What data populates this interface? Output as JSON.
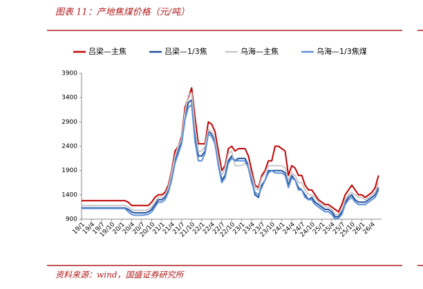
{
  "chart_data": {
    "type": "line",
    "title": "图表 11：产地焦煤价格（元/吨）",
    "source": "资料来源：wind，国盛证券研究所",
    "categories": [
      "19/1",
      null,
      null,
      "19/4",
      null,
      null,
      "19/7",
      null,
      null,
      "19/10",
      null,
      null,
      "20/1",
      null,
      null,
      "20/4",
      null,
      null,
      "20/7",
      null,
      null,
      "20/10",
      null,
      null,
      "21/1",
      null,
      null,
      "21/4",
      null,
      null,
      "21/7",
      null,
      null,
      "21/10",
      null,
      null,
      "22/1",
      null,
      null,
      "22/4",
      null,
      null,
      "22/7",
      null,
      null,
      "22/10",
      null,
      null,
      "23/1",
      null,
      null,
      "23/4",
      null,
      null,
      "23/7",
      null,
      null,
      "23/10",
      null,
      null,
      "24/1",
      null,
      null,
      "24/4",
      null,
      null,
      "24/7",
      null,
      null,
      "24/10",
      null,
      null,
      "25/1",
      null,
      null,
      "25/4",
      null,
      null,
      "25/7",
      null,
      null,
      "25/10",
      null,
      null,
      "26/1",
      null,
      null,
      "26/4",
      null,
      null
    ],
    "series": [
      {
        "name": "吕梁—主焦",
        "color": "#c00000",
        "values": [
          1280,
          1280,
          1280,
          1280,
          1280,
          1280,
          1280,
          1280,
          1280,
          1280,
          1280,
          1280,
          1280,
          1280,
          1250,
          1180,
          1180,
          1180,
          1180,
          1180,
          1180,
          1250,
          1350,
          1400,
          1400,
          1450,
          1600,
          1900,
          2300,
          2400,
          2600,
          3200,
          3400,
          3600,
          3000,
          2450,
          2450,
          2450,
          2900,
          2850,
          2700,
          2300,
          1900,
          2000,
          2350,
          2400,
          2300,
          2350,
          2350,
          2350,
          2200,
          1900,
          1600,
          1550,
          1800,
          1900,
          2100,
          2100,
          2400,
          2400,
          2350,
          2300,
          1800,
          2000,
          1950,
          1800,
          1800,
          1600,
          1500,
          1500,
          1400,
          1300,
          1250,
          1200,
          1200,
          1150,
          1100,
          1050,
          1200,
          1400,
          1500,
          1600,
          1500,
          1400,
          1400,
          1350,
          1400,
          1450,
          1550,
          1800
        ]
      },
      {
        "name": "吕梁—1/3焦",
        "color": "#1f4e9a",
        "values": [
          1130,
          1130,
          1130,
          1130,
          1130,
          1130,
          1130,
          1130,
          1130,
          1130,
          1130,
          1130,
          1130,
          1130,
          1100,
          1050,
          1030,
          1030,
          1030,
          1030,
          1050,
          1100,
          1200,
          1300,
          1300,
          1350,
          1500,
          1750,
          2100,
          2300,
          2500,
          3000,
          3300,
          3350,
          2700,
          2200,
          2200,
          2300,
          2700,
          2650,
          2500,
          2100,
          1700,
          1800,
          2100,
          2200,
          2100,
          2150,
          2150,
          2150,
          2000,
          1700,
          1400,
          1350,
          1600,
          1700,
          1900,
          1900,
          1900,
          1900,
          1900,
          1850,
          1600,
          1800,
          1700,
          1550,
          1500,
          1400,
          1300,
          1350,
          1250,
          1200,
          1150,
          1100,
          1100,
          1050,
          950,
          950,
          1050,
          1250,
          1350,
          1400,
          1300,
          1250,
          1250,
          1250,
          1300,
          1350,
          1400,
          1550
        ]
      },
      {
        "name": "乌海—主焦",
        "color": "#c8c8c8",
        "values": [
          1180,
          1180,
          1180,
          1180,
          1180,
          1180,
          1180,
          1180,
          1180,
          1180,
          1180,
          1180,
          1180,
          1180,
          1150,
          1100,
          1080,
          1080,
          1080,
          1080,
          1100,
          1150,
          1250,
          1350,
          1350,
          1400,
          1550,
          1850,
          2200,
          2400,
          2550,
          3100,
          3450,
          3500,
          2800,
          2300,
          2300,
          2400,
          2750,
          2700,
          2550,
          2150,
          1800,
          1950,
          2250,
          2300,
          2000,
          2000,
          2000,
          2050,
          2000,
          1800,
          1550,
          1500,
          1750,
          1850,
          2000,
          2000,
          2000,
          2000,
          2000,
          1950,
          1700,
          1850,
          1800,
          1650,
          1650,
          1500,
          1400,
          1400,
          1350,
          1250,
          1200,
          1150,
          1150,
          1100,
          1000,
          1000,
          1100,
          1300,
          1400,
          1450,
          1400,
          1350,
          1350,
          1300,
          1350,
          1400,
          1450,
          1650
        ]
      },
      {
        "name": "乌海—1/3焦煤",
        "color": "#5b8fd6",
        "values": [
          1120,
          1120,
          1120,
          1120,
          1120,
          1120,
          1120,
          1120,
          1120,
          1120,
          1120,
          1120,
          1120,
          1120,
          1050,
          1000,
          980,
          980,
          980,
          990,
          1000,
          1050,
          1150,
          1250,
          1250,
          1300,
          1450,
          1700,
          2050,
          2250,
          2450,
          2950,
          3200,
          3250,
          2500,
          2100,
          2100,
          2250,
          2650,
          2600,
          2450,
          2000,
          1650,
          1750,
          2050,
          2150,
          2100,
          2100,
          2100,
          2100,
          1950,
          1650,
          1450,
          1400,
          1550,
          1700,
          1850,
          1900,
          1850,
          1850,
          1850,
          1800,
          1550,
          1750,
          1700,
          1500,
          1500,
          1350,
          1300,
          1300,
          1200,
          1150,
          1100,
          1050,
          1050,
          1000,
          900,
          920,
          1000,
          1200,
          1300,
          1350,
          1250,
          1200,
          1200,
          1200,
          1250,
          1300,
          1350,
          1500
        ]
      }
    ],
    "ylim": [
      900,
      3900
    ],
    "yticks": [
      900,
      1400,
      1900,
      2400,
      2900,
      3400,
      3900
    ],
    "legend": "top"
  }
}
